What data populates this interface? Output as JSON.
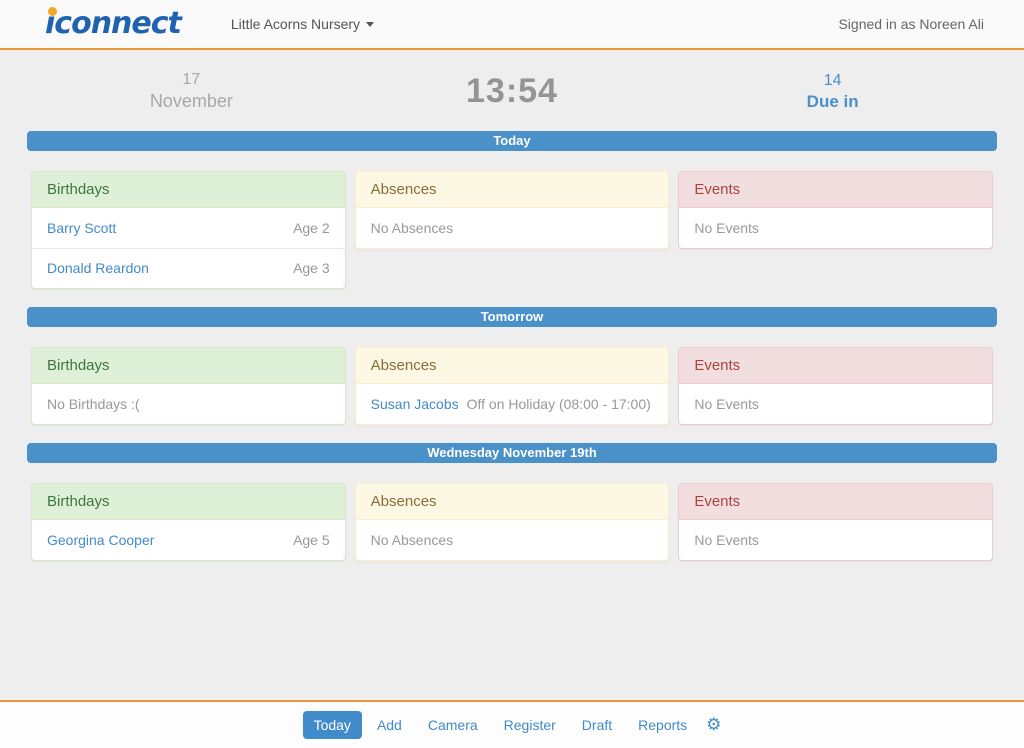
{
  "header": {
    "logo_prefix": "i",
    "logo_suffix": "connect",
    "nursery": "Little Acorns Nursery",
    "signed_in": "Signed in as Noreen Ali"
  },
  "summary": {
    "day": "17",
    "month": "November",
    "time": "13:54",
    "due_count": "14",
    "due_label": "Due in"
  },
  "sections": [
    {
      "banner": "Today",
      "panels": [
        {
          "title": "Birthdays",
          "rows": [
            {
              "name": "Barry Scott",
              "detail": "Age 2"
            },
            {
              "name": "Donald Reardon",
              "detail": "Age 3"
            }
          ]
        },
        {
          "title": "Absences",
          "rows": [
            {
              "name": "",
              "detail": "No Absences"
            }
          ]
        },
        {
          "title": "Events",
          "rows": [
            {
              "name": "",
              "detail": "No Events"
            }
          ]
        }
      ]
    },
    {
      "banner": "Tomorrow",
      "panels": [
        {
          "title": "Birthdays",
          "rows": [
            {
              "name": "",
              "detail": "No Birthdays :("
            }
          ]
        },
        {
          "title": "Absences",
          "rows": [
            {
              "name": "Susan Jacobs",
              "detail": "Off on Holiday (08:00 - 17:00)"
            }
          ]
        },
        {
          "title": "Events",
          "rows": [
            {
              "name": "",
              "detail": "No Events"
            }
          ]
        }
      ]
    },
    {
      "banner": "Wednesday November 19th",
      "panels": [
        {
          "title": "Birthdays",
          "rows": [
            {
              "name": "Georgina Cooper",
              "detail": "Age 5"
            }
          ]
        },
        {
          "title": "Absences",
          "rows": [
            {
              "name": "",
              "detail": "No Absences"
            }
          ]
        },
        {
          "title": "Events",
          "rows": [
            {
              "name": "",
              "detail": "No Events"
            }
          ]
        }
      ]
    }
  ],
  "footer": {
    "nav": [
      {
        "label": "Today",
        "active": true
      },
      {
        "label": "Add",
        "active": false
      },
      {
        "label": "Camera",
        "active": false
      },
      {
        "label": "Register",
        "active": false
      },
      {
        "label": "Draft",
        "active": false
      },
      {
        "label": "Reports",
        "active": false
      }
    ],
    "settings_icon": "⚙"
  },
  "colors": {
    "accent_blue": "#428bca",
    "banner_blue": "#4a90c9",
    "accent_orange": "#e8973b",
    "success_bg": "#dff0d8",
    "warning_bg": "#fcf8e3",
    "danger_bg": "#f2dede",
    "muted_text": "#999999"
  }
}
